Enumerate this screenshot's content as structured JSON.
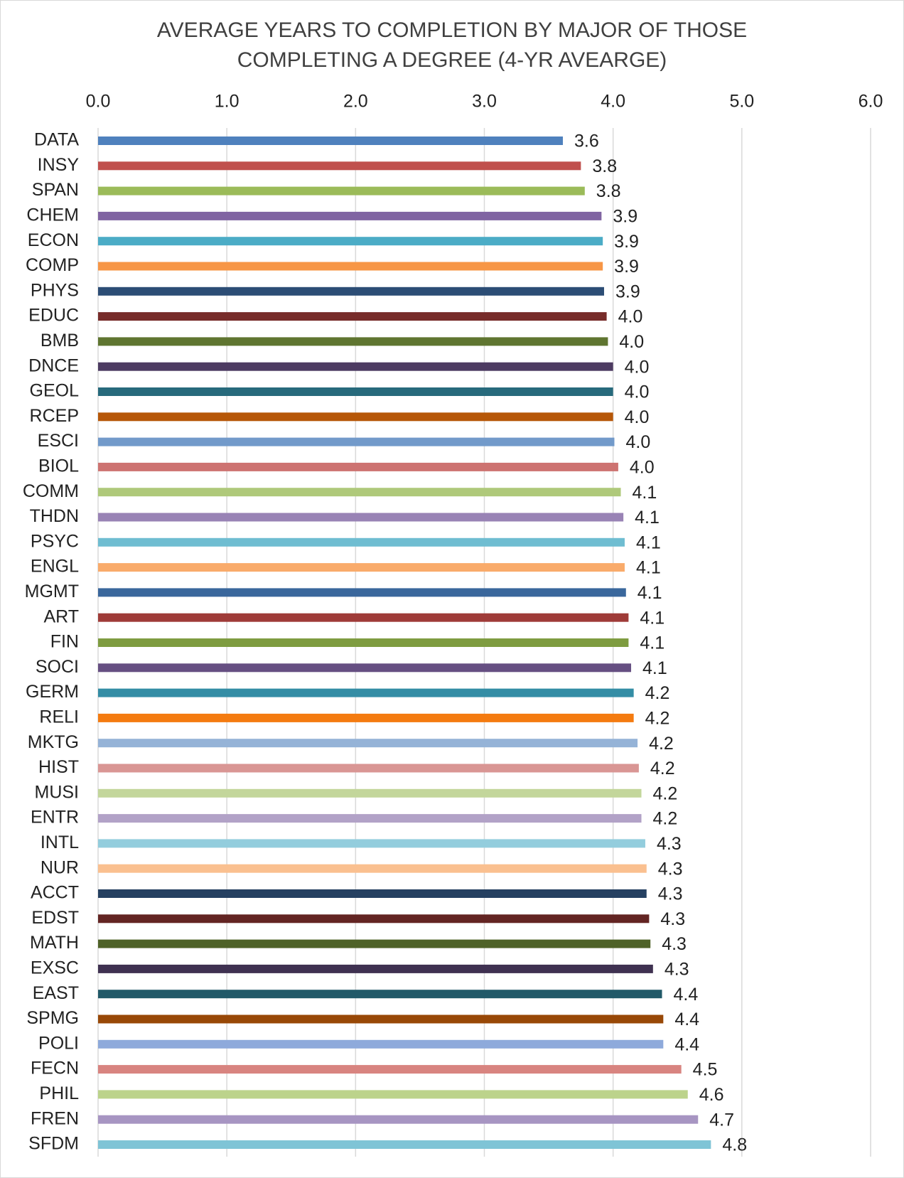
{
  "chart_data": {
    "type": "bar",
    "orientation": "horizontal",
    "title": "AVERAGE YEARS TO COMPLETION BY MAJOR OF THOSE COMPLETING A DEGREE (4-YR AVEARGE)",
    "categories": [
      "DATA",
      "INSY",
      "SPAN",
      "CHEM",
      "ECON",
      "COMP",
      "PHYS",
      "EDUC",
      "BMB",
      "DNCE",
      "GEOL",
      "RCEP",
      "ESCI",
      "BIOL",
      "COMM",
      "THDN",
      "PSYC",
      "ENGL",
      "MGMT",
      "ART",
      "FIN",
      "SOCI",
      "GERM",
      "RELI",
      "MKTG",
      "HIST",
      "MUSI",
      "ENTR",
      "INTL",
      "NUR",
      "ACCT",
      "EDST",
      "MATH",
      "EXSC",
      "EAST",
      "SPMG",
      "POLI",
      "FECN",
      "PHIL",
      "FREN",
      "SFDM"
    ],
    "values": [
      3.61,
      3.75,
      3.78,
      3.91,
      3.92,
      3.92,
      3.93,
      3.95,
      3.96,
      4.0,
      4.0,
      4.0,
      4.01,
      4.04,
      4.06,
      4.08,
      4.09,
      4.09,
      4.1,
      4.12,
      4.12,
      4.14,
      4.16,
      4.16,
      4.19,
      4.2,
      4.22,
      4.22,
      4.25,
      4.26,
      4.26,
      4.28,
      4.29,
      4.31,
      4.38,
      4.39,
      4.39,
      4.53,
      4.58,
      4.66,
      4.76
    ],
    "value_labels": [
      "3.6",
      "3.8",
      "3.8",
      "3.9",
      "3.9",
      "3.9",
      "3.9",
      "4.0",
      "4.0",
      "4.0",
      "4.0",
      "4.0",
      "4.0",
      "4.0",
      "4.1",
      "4.1",
      "4.1",
      "4.1",
      "4.1",
      "4.1",
      "4.1",
      "4.1",
      "4.2",
      "4.2",
      "4.2",
      "4.2",
      "4.2",
      "4.2",
      "4.3",
      "4.3",
      "4.3",
      "4.3",
      "4.3",
      "4.3",
      "4.4",
      "4.4",
      "4.4",
      "4.5",
      "4.6",
      "4.7",
      "4.8"
    ],
    "colors": [
      "#4f81bd",
      "#c0504d",
      "#9bbb59",
      "#8064a2",
      "#4bacc6",
      "#f79646",
      "#2c4d75",
      "#772c2a",
      "#5f7530",
      "#4d3b62",
      "#276a7c",
      "#b65708",
      "#729aca",
      "#cd7371",
      "#afc97a",
      "#9983b5",
      "#6fbdd1",
      "#f9ab6b",
      "#3a679c",
      "#9f3b38",
      "#7e9c40",
      "#664f82",
      "#348da5",
      "#f47b10",
      "#95b3d7",
      "#d99694",
      "#c3d69b",
      "#b2a2c7",
      "#93cddd",
      "#fac090",
      "#254061",
      "#632523",
      "#4f6228",
      "#3f3151",
      "#215968",
      "#984807",
      "#8eaadb",
      "#d88480",
      "#bcd38b",
      "#a795c2",
      "#7fc4d6"
    ],
    "xlim": [
      0,
      6
    ],
    "xticks": [
      {
        "value": 0,
        "label": "0.0"
      },
      {
        "value": 1,
        "label": "1.0"
      },
      {
        "value": 2,
        "label": "2.0"
      },
      {
        "value": 3,
        "label": "3.0"
      },
      {
        "value": 4,
        "label": "4.0"
      },
      {
        "value": 5,
        "label": "5.0"
      },
      {
        "value": 6,
        "label": "6.0"
      }
    ],
    "grid": true
  }
}
